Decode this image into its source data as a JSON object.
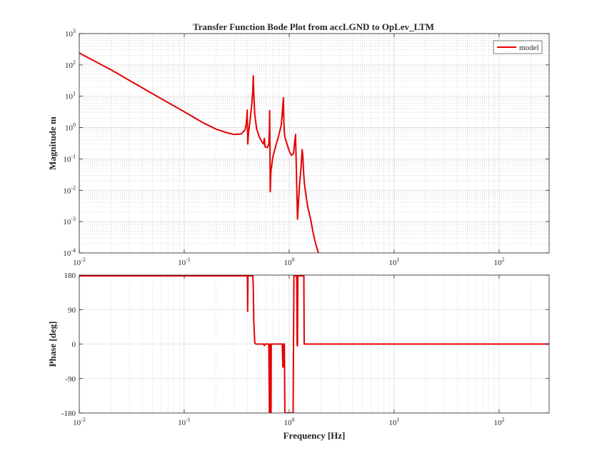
{
  "figure": {
    "title": "Transfer Function Bode Plot from accLGND to OpLev_LTM",
    "line_color": "#e60000"
  },
  "chart_data": [
    {
      "name": "magnitude",
      "type": "line",
      "title": "Transfer Function Bode Plot from accLGND to OpLev_LTM",
      "xlabel": "",
      "ylabel": "Magnitude m",
      "xscale": "log",
      "yscale": "log",
      "xlim": [
        0.01,
        300
      ],
      "ylim": [
        0.0001,
        1000
      ],
      "grid": true,
      "minor_grid": true,
      "legend": {
        "location": "top-right",
        "entries": [
          "model"
        ]
      },
      "x_ticks": [
        {
          "value": 0.01,
          "base": "10",
          "exp": "-2"
        },
        {
          "value": 0.1,
          "base": "10",
          "exp": "-1"
        },
        {
          "value": 1,
          "base": "10",
          "exp": "0"
        },
        {
          "value": 10,
          "base": "10",
          "exp": "1"
        },
        {
          "value": 100,
          "base": "10",
          "exp": "2"
        }
      ],
      "y_ticks": [
        {
          "value": 0.0001,
          "base": "10",
          "exp": "-4"
        },
        {
          "value": 0.001,
          "base": "10",
          "exp": "-3"
        },
        {
          "value": 0.01,
          "base": "10",
          "exp": "-2"
        },
        {
          "value": 0.1,
          "base": "10",
          "exp": "-1"
        },
        {
          "value": 1,
          "base": "10",
          "exp": "0"
        },
        {
          "value": 10,
          "base": "10",
          "exp": "1"
        },
        {
          "value": 100,
          "base": "10",
          "exp": "2"
        },
        {
          "value": 1000,
          "base": "10",
          "exp": "3"
        }
      ],
      "series": [
        {
          "name": "model",
          "color": "#e60000",
          "x": [
            0.01,
            0.02,
            0.05,
            0.1,
            0.15,
            0.2,
            0.25,
            0.3,
            0.35,
            0.38,
            0.39,
            0.395,
            0.398,
            0.4,
            0.403,
            0.41,
            0.42,
            0.44,
            0.45,
            0.455,
            0.46,
            0.47,
            0.49,
            0.52,
            0.55,
            0.57,
            0.58,
            0.585,
            0.59,
            0.6,
            0.62,
            0.64,
            0.648,
            0.652,
            0.655,
            0.66,
            0.67,
            0.7,
            0.75,
            0.8,
            0.84,
            0.86,
            0.88,
            0.89,
            0.9,
            0.91,
            0.94,
            1.0,
            1.05,
            1.1,
            1.13,
            1.15,
            1.17,
            1.2,
            1.22,
            1.25,
            1.3,
            1.33,
            1.35,
            1.37,
            1.4,
            1.5,
            1.6,
            1.7,
            1.8,
            1.9
          ],
          "y": [
            240,
            70,
            12,
            3.2,
            1.45,
            0.9,
            0.7,
            0.6,
            0.63,
            0.85,
            1.3,
            2.2,
            3.6,
            1.5,
            0.3,
            0.7,
            1.3,
            5.5,
            15,
            45,
            12,
            2.6,
            0.9,
            0.5,
            0.35,
            0.3,
            0.45,
            0.3,
            0.24,
            0.24,
            0.23,
            0.3,
            0.8,
            3.5,
            0.5,
            0.009,
            0.04,
            0.12,
            0.28,
            0.6,
            1.2,
            3,
            9,
            1.5,
            0.7,
            0.5,
            0.35,
            0.18,
            0.13,
            0.15,
            0.35,
            0.6,
            0.05,
            0.0012,
            0.003,
            0.012,
            0.06,
            0.2,
            0.12,
            0.04,
            0.015,
            0.003,
            0.0012,
            0.0004,
            0.00018,
            0.0001
          ]
        }
      ]
    },
    {
      "name": "phase",
      "type": "line",
      "xlabel": "Frequency [Hz]",
      "ylabel": "Phase [deg]",
      "xscale": "log",
      "xlim": [
        0.01,
        300
      ],
      "ylim": [
        -180,
        180
      ],
      "grid": true,
      "minor_grid": true,
      "x_ticks": [
        {
          "value": 0.01,
          "base": "10",
          "exp": "-2"
        },
        {
          "value": 0.1,
          "base": "10",
          "exp": "-1"
        },
        {
          "value": 1,
          "base": "10",
          "exp": "0"
        },
        {
          "value": 10,
          "base": "10",
          "exp": "1"
        },
        {
          "value": 100,
          "base": "10",
          "exp": "2"
        }
      ],
      "y_ticks": [
        {
          "value": -180,
          "label": "-180"
        },
        {
          "value": -90,
          "label": "-90"
        },
        {
          "value": 0,
          "label": "0"
        },
        {
          "value": 90,
          "label": "90"
        },
        {
          "value": 180,
          "label": "180"
        }
      ],
      "series": [
        {
          "name": "model",
          "color": "#e60000",
          "x": [
            0.01,
            0.39,
            0.395,
            0.4,
            0.402,
            0.405,
            0.44,
            0.45,
            0.455,
            0.46,
            0.47,
            0.48,
            0.5,
            0.55,
            0.57,
            0.58,
            0.59,
            0.6,
            0.64,
            0.648,
            0.652,
            0.656,
            0.66,
            0.664,
            0.668,
            0.672,
            0.675,
            0.7,
            0.8,
            0.84,
            0.86,
            0.87,
            0.88,
            0.885,
            0.89,
            0.9,
            0.91,
            0.95,
            1.05,
            1.09,
            1.1,
            1.11,
            1.12,
            1.15,
            1.18,
            1.19,
            1.2,
            1.21,
            1.25,
            1.3,
            1.36,
            1.38,
            1.39,
            1.4,
            300
          ],
          "y": [
            178,
            178,
            178,
            175,
            85,
            178,
            178,
            178,
            150,
            60,
            3,
            0,
            0,
            0,
            0,
            -4,
            0,
            0,
            0,
            -180,
            -180,
            -180,
            0,
            0,
            -180,
            -180,
            0,
            0,
            0,
            0,
            0,
            -60,
            0,
            -60,
            0,
            0,
            -180,
            -180,
            -180,
            -180,
            0,
            178,
            178,
            178,
            178,
            0,
            -5,
            178,
            178,
            178,
            178,
            178,
            0,
            0,
            0
          ]
        }
      ]
    }
  ]
}
